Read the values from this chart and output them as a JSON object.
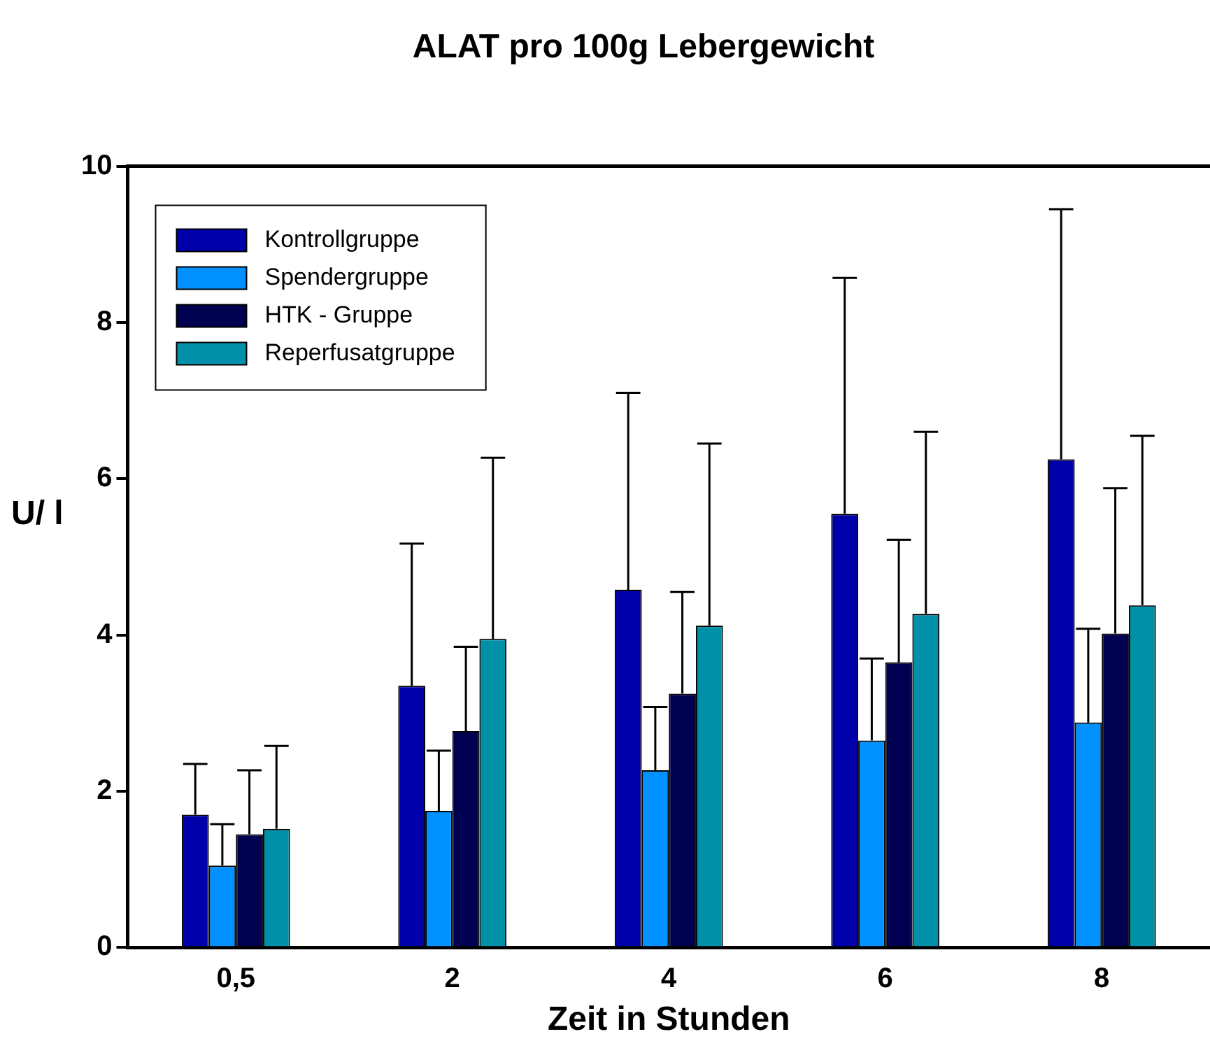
{
  "chart_data": {
    "type": "bar",
    "title": "ALAT pro 100g Lebergewicht",
    "xlabel": "Zeit in Stunden",
    "ylabel": "U/ l",
    "categories": [
      "0,5",
      "2",
      "4",
      "6",
      "8"
    ],
    "series": [
      {
        "name": "Kontrollgruppe",
        "color": "#0000aa",
        "values": [
          1.7,
          3.35,
          4.58,
          5.55,
          6.25
        ],
        "errors": [
          [
            1.7,
            2.35
          ],
          [
            3.35,
            5.17
          ],
          [
            4.58,
            7.1
          ],
          [
            5.55,
            8.57
          ],
          [
            6.25,
            9.45
          ]
        ]
      },
      {
        "name": "Spendergruppe",
        "color": "#0090ff",
        "values": [
          1.05,
          1.75,
          2.27,
          2.65,
          2.88
        ],
        "errors": [
          [
            1.05,
            1.58
          ],
          [
            1.75,
            2.52
          ],
          [
            2.27,
            3.08
          ],
          [
            2.65,
            3.7
          ],
          [
            2.88,
            4.08
          ]
        ]
      },
      {
        "name": "HTK - Gruppe",
        "color": "#000050",
        "values": [
          1.45,
          2.77,
          3.25,
          3.65,
          4.02
        ],
        "errors": [
          [
            1.45,
            2.27
          ],
          [
            2.77,
            3.85
          ],
          [
            3.25,
            4.55
          ],
          [
            3.65,
            5.22
          ],
          [
            4.02,
            5.88
          ]
        ]
      },
      {
        "name": "Reperfusatgruppe",
        "color": "#0090a8",
        "values": [
          1.52,
          3.95,
          4.12,
          4.27,
          4.38
        ],
        "errors": [
          [
            1.52,
            2.58
          ],
          [
            3.95,
            6.27
          ],
          [
            4.12,
            6.45
          ],
          [
            4.27,
            6.6
          ],
          [
            4.38,
            6.55
          ]
        ]
      }
    ],
    "ylim": [
      0,
      10
    ],
    "yticks": [
      0,
      2,
      4,
      6,
      8,
      10
    ],
    "grid": false,
    "legend": "top left"
  }
}
